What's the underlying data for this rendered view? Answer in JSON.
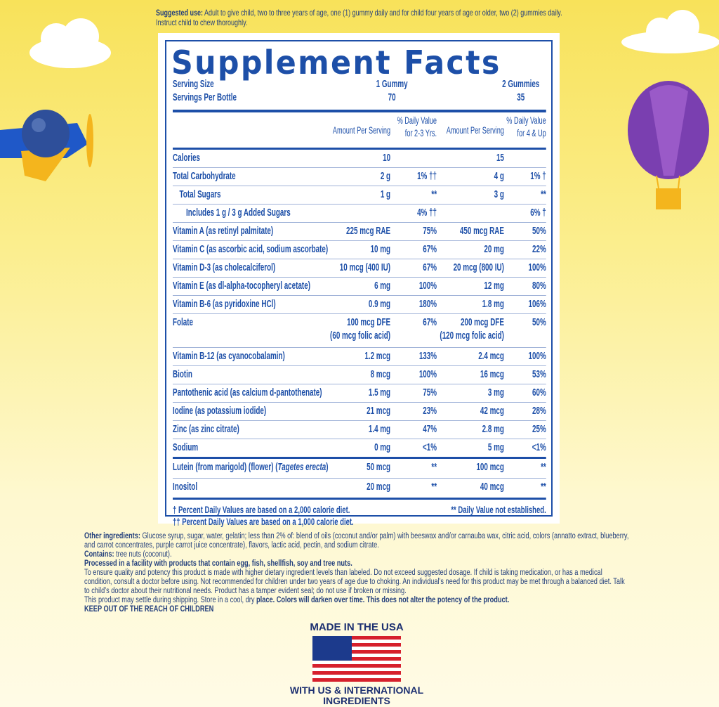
{
  "suggested_use": {
    "label": "Suggested use:",
    "text": "Adult to give child, two to three years of age, one (1) gummy daily and for child four years of age or older, two (2) gummies daily. Instruct child to chew thoroughly."
  },
  "facts": {
    "title": "Supplement Facts",
    "serving": [
      [
        "Serving Size",
        "1 Gummy",
        "2 Gummies"
      ],
      [
        "Servings Per Bottle",
        "70",
        "35"
      ]
    ],
    "header": [
      [
        "Amount Per Serving"
      ],
      [
        "% Daily Value",
        "for 2-3 Yrs."
      ],
      [
        "Amount Per Serving"
      ],
      [
        "% Daily Value",
        "for 4 & Up"
      ]
    ],
    "rows": [
      {
        "label": "Calories",
        "cells": [
          "10",
          null,
          "15",
          null
        ]
      },
      {
        "label": "Total Carbohydrate",
        "cells": [
          "2 g",
          "1% ††",
          "4 g",
          "1% †"
        ]
      },
      {
        "label": "Total Sugars",
        "cells": [
          "1 g",
          "**",
          "3 g",
          "**"
        ]
      },
      {
        "label": "Includes 1 g / 3 g Added Sugars",
        "cells": [
          null,
          "4% ††",
          null,
          "6% †"
        ]
      },
      {
        "label": "Vitamin A (as retinyl palmitate)",
        "cells": [
          "225 mcg RAE",
          "75%",
          "450 mcg RAE",
          "50%"
        ]
      },
      {
        "label": "Vitamin C (as ascorbic acid, sodium ascorbate)",
        "cells": [
          "10 mg",
          "67%",
          "20 mg",
          "22%"
        ]
      },
      {
        "label": "Vitamin D-3 (as cholecalciferol)",
        "cells": [
          "10 mcg (400 IU)",
          "67%",
          "20 mcg (800 IU)",
          "100%"
        ]
      },
      {
        "label": "Vitamin E (as dl-alpha-tocopheryl acetate)",
        "cells": [
          "6 mg",
          "100%",
          "12 mg",
          "80%"
        ]
      },
      {
        "label": "Vitamin B-6 (as pyridoxine HCl)",
        "cells": [
          "0.9 mg",
          "180%",
          "1.8 mg",
          "106%"
        ]
      },
      {
        "label": "Folate",
        "cells": [
          "100 mcg DFE",
          "67%",
          "200 mcg DFE",
          "50%"
        ],
        "notes": [
          "(60 mcg folic acid)",
          null,
          "(120 mcg folic acid)",
          null
        ]
      },
      {
        "label": "Vitamin B-12 (as cyanocobalamin)",
        "cells": [
          "1.2 mcg",
          "133%",
          "2.4 mcg",
          "100%"
        ]
      },
      {
        "label": "Biotin",
        "cells": [
          "8 mcg",
          "100%",
          "16 mcg",
          "53%"
        ]
      },
      {
        "label": "Pantothenic acid (as calcium d-pantothenate)",
        "cells": [
          "1.5 mg",
          "75%",
          "3 mg",
          "60%"
        ]
      },
      {
        "label": "Iodine (as potassium iodide)",
        "cells": [
          "21 mcg",
          "23%",
          "42 mcg",
          "28%"
        ]
      },
      {
        "label": "Zinc (as zinc citrate)",
        "cells": [
          "1.4 mg",
          "47%",
          "2.8 mg",
          "25%"
        ]
      },
      {
        "label": "Sodium",
        "cells": [
          "0 mg",
          "<1%",
          "5 mg",
          "<1%"
        ]
      },
      {
        "label": "Lutein (from marigold) (flower) (",
        "italic": "Tagetes erecta",
        "suffix": ")",
        "cells": [
          "50 mcg",
          "**",
          "100 mcg",
          "**"
        ]
      },
      {
        "label": "Inositol",
        "cells": [
          "20 mcg",
          "**",
          "40 mcg",
          "**"
        ]
      }
    ],
    "footnotes": [
      "† Percent Daily Values are based on a 2,000 calorie diet.",
      "†† Percent Daily Values are based on a 1,000 calorie diet."
    ],
    "note": "** Daily Value not established."
  },
  "other": [
    [
      {
        "bold": "Other ingredients:"
      },
      {
        "text": " Glucose syrup, sugar, water, gelatin; less than 2% of: blend of oils (coconut and/or palm) with beeswax and/or carnauba wax, citric acid, colors (annatto extract, blueberry, and carrot concentrates, purple carrot juice concentrate), flavors, lactic acid, pectin, and sodium citrate."
      }
    ],
    [
      {
        "bold": "Contains:"
      },
      {
        "text": " tree nuts (coconut)."
      }
    ],
    [
      {
        "bold": "Processed in a facility with products that contain egg, fish, shellfish, soy and tree nuts."
      }
    ],
    [
      {
        "text": "To ensure quality and potency this product is made with higher dietary ingredient levels than labeled. Do not exceed suggested dosage. If child is taking medication, or has a medical condition, consult a doctor before using. Not recommended for children under two years of age due to choking. An individual’s need for this product may be met through a balanced diet. Talk to child’s doctor about their nutritional needs. Product has a tamper evident seal; do not use if broken or missing."
      }
    ],
    [
      {
        "text": "This product may settle during shipping. Store in a cool, dry "
      },
      {
        "bold": "place. Colors will darken over time. This does not alter the potency of the product."
      }
    ],
    [
      {
        "bold": "KEEP OUT OF THE REACH OF CHILDREN"
      }
    ]
  ],
  "badge": {
    "top": "MADE IN THE USA",
    "bottom": [
      "WITH US & INTERNATIONAL",
      "INGREDIENTS"
    ]
  }
}
